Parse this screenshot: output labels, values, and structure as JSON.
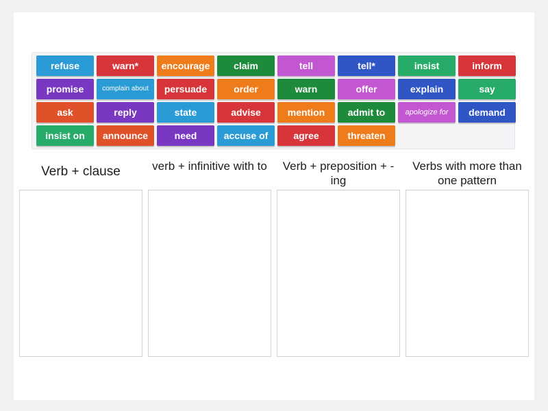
{
  "tiles": [
    {
      "label": "refuse",
      "color": "#2b9bd6"
    },
    {
      "label": "warn*",
      "color": "#d7353a"
    },
    {
      "label": "encourage",
      "color": "#ef7c1a"
    },
    {
      "label": "claim",
      "color": "#1e8a3c"
    },
    {
      "label": "tell",
      "color": "#c356d1"
    },
    {
      "label": "tell*",
      "color": "#2f56c4"
    },
    {
      "label": "insist",
      "color": "#27ab69"
    },
    {
      "label": "inform",
      "color": "#d7353a"
    },
    {
      "label": "promise",
      "color": "#7a38c2"
    },
    {
      "label": "complain about",
      "color": "#2b9bd6"
    },
    {
      "label": "persuade",
      "color": "#d7353a"
    },
    {
      "label": "order",
      "color": "#ef7c1a"
    },
    {
      "label": "warn",
      "color": "#1e8a3c"
    },
    {
      "label": "offer",
      "color": "#c356d1"
    },
    {
      "label": "explain",
      "color": "#2f56c4"
    },
    {
      "label": "say",
      "color": "#27ab69"
    },
    {
      "label": "ask",
      "color": "#e0512a"
    },
    {
      "label": "reply",
      "color": "#7a38c2"
    },
    {
      "label": "state",
      "color": "#2b9bd6"
    },
    {
      "label": "advise",
      "color": "#d7353a"
    },
    {
      "label": "mention",
      "color": "#ef7c1a"
    },
    {
      "label": "admit to",
      "color": "#1e8a3c"
    },
    {
      "label": "apologize for",
      "color": "#c356d1"
    },
    {
      "label": "demand",
      "color": "#2f56c4"
    },
    {
      "label": "insist on",
      "color": "#27ab69"
    },
    {
      "label": "announce",
      "color": "#e0512a"
    },
    {
      "label": "need",
      "color": "#7a38c2"
    },
    {
      "label": "accuse of",
      "color": "#2b9bd6"
    },
    {
      "label": "agree",
      "color": "#d7353a"
    },
    {
      "label": "threaten",
      "color": "#ef7c1a"
    }
  ],
  "columns": [
    {
      "heading": "Verb + clause"
    },
    {
      "heading": "verb + infinitive with to"
    },
    {
      "heading": "Verb + preposition + -ing"
    },
    {
      "heading": "Verbs with more than one pattern"
    }
  ]
}
